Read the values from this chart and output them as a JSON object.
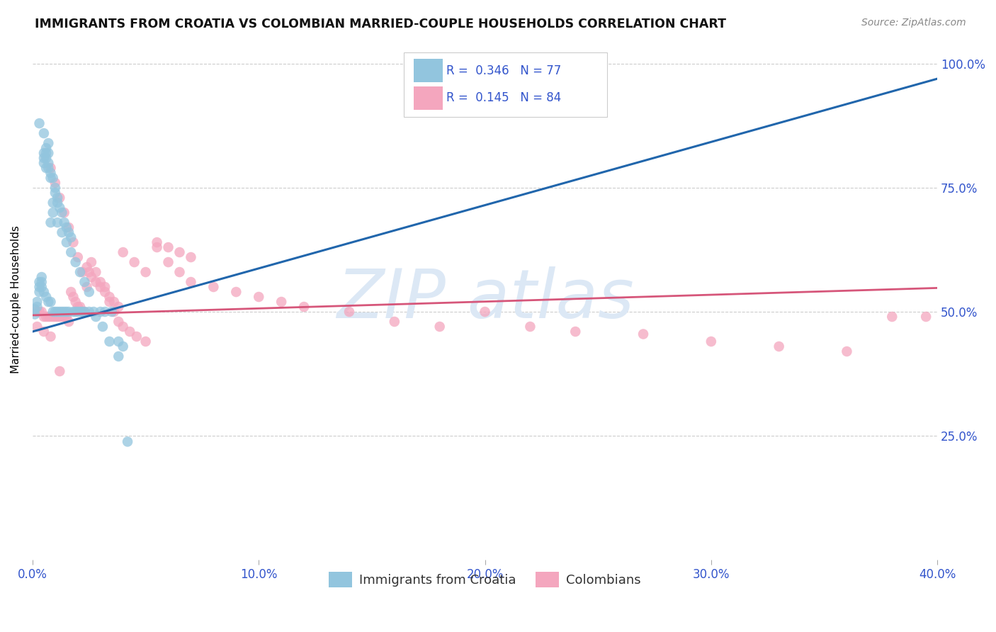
{
  "title": "IMMIGRANTS FROM CROATIA VS COLOMBIAN MARRIED-COUPLE HOUSEHOLDS CORRELATION CHART",
  "source": "Source: ZipAtlas.com",
  "ylabel_label": "Married-couple Households",
  "legend_label_1": "Immigrants from Croatia",
  "legend_label_2": "Colombians",
  "R1": 0.346,
  "N1": 77,
  "R2": 0.145,
  "N2": 84,
  "blue_color": "#92c5de",
  "pink_color": "#f4a6be",
  "trendline_blue": "#2166ac",
  "trendline_pink": "#d6567a",
  "axis_label_color": "#3355cc",
  "watermark_color": "#dce8f5",
  "background_color": "#ffffff",
  "blue_dots_x": [
    0.001,
    0.001,
    0.002,
    0.002,
    0.003,
    0.003,
    0.003,
    0.004,
    0.004,
    0.004,
    0.005,
    0.005,
    0.005,
    0.005,
    0.006,
    0.006,
    0.006,
    0.006,
    0.006,
    0.007,
    0.007,
    0.007,
    0.007,
    0.008,
    0.008,
    0.008,
    0.008,
    0.009,
    0.009,
    0.009,
    0.01,
    0.01,
    0.01,
    0.011,
    0.011,
    0.011,
    0.012,
    0.012,
    0.013,
    0.013,
    0.014,
    0.014,
    0.015,
    0.015,
    0.016,
    0.016,
    0.017,
    0.018,
    0.019,
    0.02,
    0.021,
    0.022,
    0.023,
    0.025,
    0.027,
    0.03,
    0.032,
    0.035,
    0.038,
    0.04,
    0.003,
    0.005,
    0.007,
    0.009,
    0.011,
    0.013,
    0.015,
    0.017,
    0.019,
    0.021,
    0.023,
    0.025,
    0.028,
    0.031,
    0.034,
    0.038,
    0.042
  ],
  "blue_dots_y": [
    0.505,
    0.495,
    0.52,
    0.51,
    0.56,
    0.55,
    0.54,
    0.57,
    0.56,
    0.55,
    0.82,
    0.81,
    0.8,
    0.54,
    0.83,
    0.82,
    0.81,
    0.79,
    0.53,
    0.82,
    0.8,
    0.79,
    0.52,
    0.78,
    0.77,
    0.68,
    0.52,
    0.77,
    0.7,
    0.5,
    0.75,
    0.74,
    0.5,
    0.73,
    0.72,
    0.5,
    0.71,
    0.5,
    0.7,
    0.5,
    0.68,
    0.5,
    0.67,
    0.5,
    0.66,
    0.5,
    0.65,
    0.5,
    0.5,
    0.5,
    0.5,
    0.5,
    0.5,
    0.5,
    0.5,
    0.5,
    0.5,
    0.5,
    0.44,
    0.43,
    0.88,
    0.86,
    0.84,
    0.72,
    0.68,
    0.66,
    0.64,
    0.62,
    0.6,
    0.58,
    0.56,
    0.54,
    0.49,
    0.47,
    0.44,
    0.41,
    0.238
  ],
  "pink_dots_x": [
    0.001,
    0.002,
    0.003,
    0.004,
    0.005,
    0.006,
    0.007,
    0.008,
    0.009,
    0.01,
    0.011,
    0.012,
    0.013,
    0.014,
    0.015,
    0.016,
    0.017,
    0.018,
    0.019,
    0.02,
    0.021,
    0.022,
    0.023,
    0.024,
    0.025,
    0.026,
    0.028,
    0.03,
    0.032,
    0.034,
    0.036,
    0.038,
    0.04,
    0.043,
    0.046,
    0.05,
    0.055,
    0.06,
    0.065,
    0.07,
    0.008,
    0.01,
    0.012,
    0.014,
    0.016,
    0.018,
    0.02,
    0.022,
    0.024,
    0.026,
    0.028,
    0.03,
    0.032,
    0.034,
    0.036,
    0.038,
    0.04,
    0.045,
    0.05,
    0.055,
    0.06,
    0.065,
    0.07,
    0.08,
    0.09,
    0.1,
    0.11,
    0.12,
    0.14,
    0.16,
    0.18,
    0.2,
    0.22,
    0.24,
    0.27,
    0.3,
    0.33,
    0.36,
    0.38,
    0.395,
    0.002,
    0.005,
    0.008,
    0.012
  ],
  "pink_dots_y": [
    0.505,
    0.5,
    0.5,
    0.5,
    0.49,
    0.49,
    0.49,
    0.49,
    0.49,
    0.49,
    0.49,
    0.49,
    0.49,
    0.49,
    0.49,
    0.48,
    0.54,
    0.53,
    0.52,
    0.51,
    0.51,
    0.5,
    0.5,
    0.59,
    0.58,
    0.57,
    0.56,
    0.55,
    0.54,
    0.53,
    0.52,
    0.51,
    0.47,
    0.46,
    0.45,
    0.44,
    0.64,
    0.63,
    0.62,
    0.61,
    0.79,
    0.76,
    0.73,
    0.7,
    0.67,
    0.64,
    0.61,
    0.58,
    0.55,
    0.6,
    0.58,
    0.56,
    0.55,
    0.52,
    0.5,
    0.48,
    0.62,
    0.6,
    0.58,
    0.63,
    0.6,
    0.58,
    0.56,
    0.55,
    0.54,
    0.53,
    0.52,
    0.51,
    0.5,
    0.48,
    0.47,
    0.5,
    0.47,
    0.46,
    0.455,
    0.44,
    0.43,
    0.42,
    0.49,
    0.49,
    0.47,
    0.46,
    0.45,
    0.38
  ],
  "xlim": [
    0.0,
    0.4
  ],
  "ylim": [
    0.0,
    1.05
  ],
  "xticks": [
    0.0,
    0.1,
    0.2,
    0.3,
    0.4
  ],
  "yticks": [
    0.25,
    0.5,
    0.75,
    1.0
  ],
  "blue_trend_x": [
    0.0,
    0.4
  ],
  "blue_trend_y": [
    0.46,
    0.97
  ],
  "pink_trend_x": [
    0.0,
    0.4
  ],
  "pink_trend_y": [
    0.493,
    0.548
  ]
}
